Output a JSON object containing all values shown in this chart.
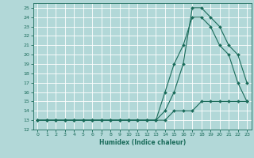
{
  "xlabel": "Humidex (Indice chaleur)",
  "bg_color": "#b2d8d8",
  "grid_color": "#ffffff",
  "line_color": "#1a6b5a",
  "xlim": [
    -0.5,
    23.5
  ],
  "ylim": [
    12,
    25.5
  ],
  "xticks": [
    0,
    1,
    2,
    3,
    4,
    5,
    6,
    7,
    8,
    9,
    10,
    11,
    12,
    13,
    14,
    15,
    16,
    17,
    18,
    19,
    20,
    21,
    22,
    23
  ],
  "yticks": [
    12,
    13,
    14,
    15,
    16,
    17,
    18,
    19,
    20,
    21,
    22,
    23,
    24,
    25
  ],
  "series": [
    {
      "x": [
        0,
        1,
        2,
        3,
        4,
        5,
        6,
        7,
        8,
        9,
        10,
        11,
        12,
        13,
        14,
        15,
        16,
        17,
        18,
        19,
        20,
        21,
        22,
        23
      ],
      "y": [
        13,
        13,
        13,
        13,
        13,
        13,
        13,
        13,
        13,
        13,
        13,
        13,
        13,
        13,
        13,
        14,
        14,
        14,
        15,
        15,
        15,
        15,
        15,
        15
      ]
    },
    {
      "x": [
        0,
        1,
        2,
        3,
        4,
        5,
        6,
        7,
        8,
        9,
        10,
        11,
        12,
        13,
        14,
        15,
        16,
        17,
        18,
        19,
        20,
        21,
        22,
        23
      ],
      "y": [
        13,
        13,
        13,
        13,
        13,
        13,
        13,
        13,
        13,
        13,
        13,
        13,
        13,
        13,
        16,
        19,
        21,
        24,
        24,
        23,
        21,
        20,
        17,
        15
      ]
    },
    {
      "x": [
        0,
        1,
        2,
        3,
        4,
        5,
        6,
        7,
        8,
        9,
        10,
        11,
        12,
        13,
        14,
        15,
        16,
        17,
        18,
        19,
        20,
        21,
        22,
        23
      ],
      "y": [
        13,
        13,
        13,
        13,
        13,
        13,
        13,
        13,
        13,
        13,
        13,
        13,
        13,
        13,
        14,
        16,
        19,
        25,
        25,
        24,
        23,
        21,
        20,
        17
      ]
    }
  ]
}
